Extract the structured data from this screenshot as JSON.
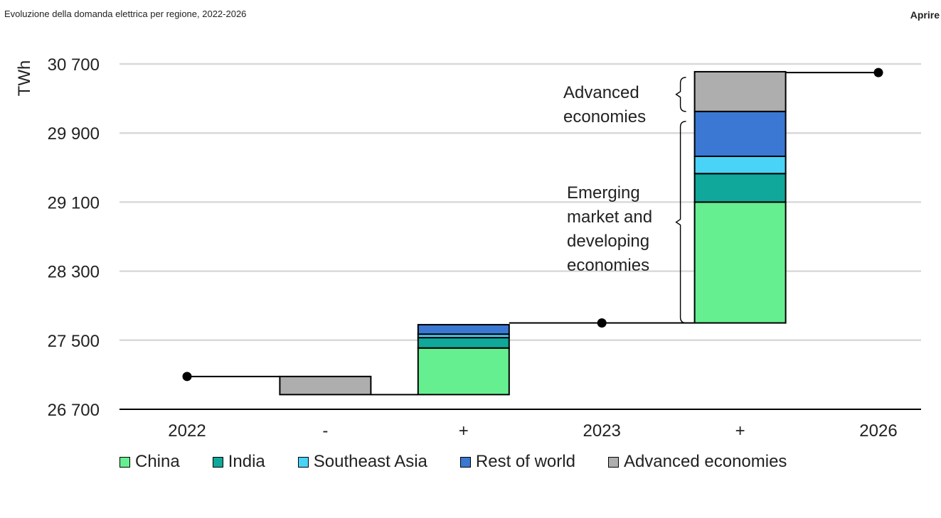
{
  "header": {
    "title": "Evoluzione della domanda elettrica per regione, 2022-2026",
    "open_label": "Aprire"
  },
  "colors": {
    "china": "#66ef90",
    "india": "#0fa89a",
    "southeast_asia": "#49d3f7",
    "rest_of_world": "#3a78d3",
    "advanced": "#aeaeae",
    "grid": "#d9d9d9",
    "axis": "#000000"
  },
  "chart_data": {
    "type": "waterfall",
    "title": "Evoluzione della domanda elettrica per regione, 2022-2026",
    "ylabel": "TWh",
    "ylim": [
      26700,
      30700
    ],
    "yticks": [
      26700,
      27500,
      28300,
      29100,
      29900,
      30700
    ],
    "ytick_labels": [
      "26 700",
      "27 500",
      "28 300",
      "29 100",
      "29 900",
      "30 700"
    ],
    "categories": [
      "2022",
      "-",
      "+",
      "2023",
      "+",
      "2026"
    ],
    "series": [
      {
        "name": "China",
        "key": "china"
      },
      {
        "name": "India",
        "key": "india"
      },
      {
        "name": "Southeast Asia",
        "key": "southeast_asia"
      },
      {
        "name": "Rest of world",
        "key": "rest_of_world"
      },
      {
        "name": "Advanced economies",
        "key": "advanced"
      }
    ],
    "totals": [
      {
        "category_index": 0,
        "value": 27080
      },
      {
        "category_index": 3,
        "value": 27700
      },
      {
        "category_index": 5,
        "value": 30600
      }
    ],
    "bars": [
      {
        "category_index": 1,
        "base": 26870,
        "segments": [
          {
            "series": "advanced",
            "value": 210
          }
        ]
      },
      {
        "category_index": 2,
        "base": 26870,
        "segments": [
          {
            "series": "china",
            "value": 540
          },
          {
            "series": "india",
            "value": 120
          },
          {
            "series": "southeast_asia",
            "value": 40
          },
          {
            "series": "rest_of_world",
            "value": 110
          }
        ]
      },
      {
        "category_index": 4,
        "base": 27700,
        "segments": [
          {
            "series": "china",
            "value": 1400
          },
          {
            "series": "india",
            "value": 330
          },
          {
            "series": "southeast_asia",
            "value": 200
          },
          {
            "series": "rest_of_world",
            "value": 520
          },
          {
            "series": "advanced",
            "value": 460
          }
        ]
      }
    ],
    "annotations": [
      {
        "id": "advanced",
        "lines": [
          "Advanced",
          "economies"
        ]
      },
      {
        "id": "emde",
        "lines": [
          "Emerging",
          "market and",
          "developing",
          "economies"
        ]
      }
    ],
    "legend_position": "bottom"
  }
}
